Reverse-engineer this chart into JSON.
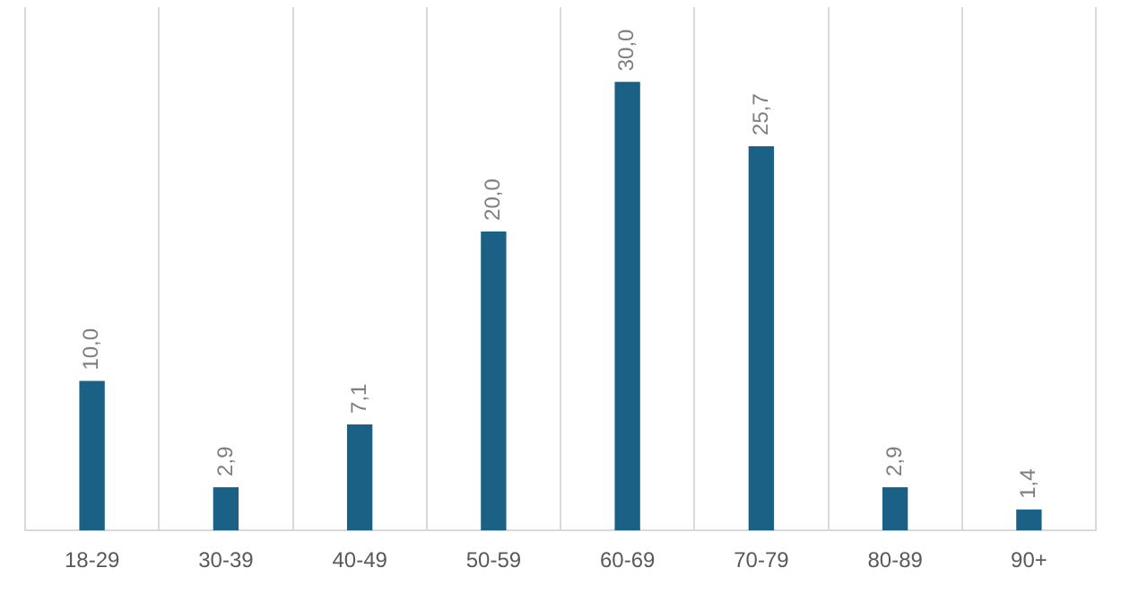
{
  "chart_data": {
    "type": "bar",
    "categories": [
      "18-29",
      "30-39",
      "40-49",
      "50-59",
      "60-69",
      "70-79",
      "80-89",
      "90+"
    ],
    "values": [
      10.0,
      2.9,
      7.1,
      20.0,
      30.0,
      25.7,
      2.9,
      1.4
    ],
    "value_labels": [
      "10,0",
      "2,9",
      "7,1",
      "20,0",
      "30,0",
      "25,7",
      "2,9",
      "1,4"
    ],
    "color": "#1a6185",
    "tick_labels": "x",
    "grid": "x",
    "legend": false
  }
}
